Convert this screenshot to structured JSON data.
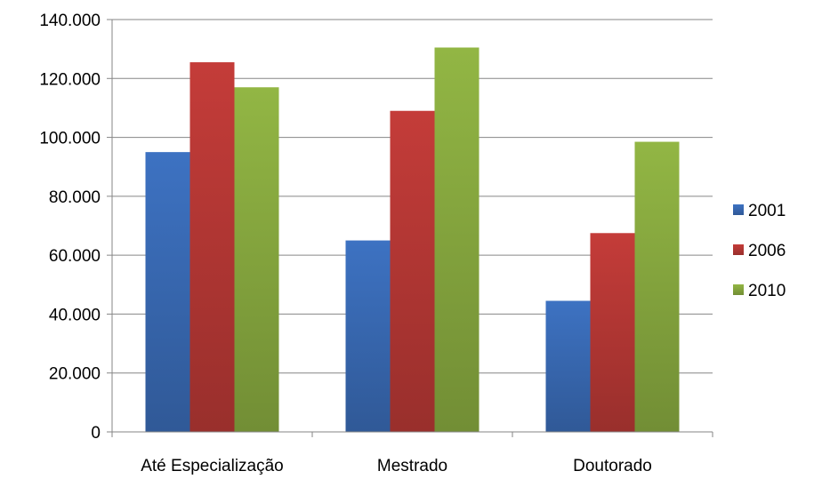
{
  "chart_data": {
    "type": "bar",
    "categories": [
      "Até Especialização",
      "Mestrado",
      "Doutorado"
    ],
    "series": [
      {
        "name": "2001",
        "values": [
          95000,
          65000,
          44500
        ],
        "color": "#3d72c2"
      },
      {
        "name": "2006",
        "values": [
          125500,
          109000,
          67500
        ],
        "color": "#c43c39"
      },
      {
        "name": "2010",
        "values": [
          117000,
          130500,
          98500
        ],
        "color": "#92b644"
      }
    ],
    "ylim": [
      0,
      140000
    ],
    "yticks": [
      0,
      20000,
      40000,
      60000,
      80000,
      100000,
      120000,
      140000
    ],
    "ytick_labels": [
      "0",
      "20.000",
      "40.000",
      "60.000",
      "80.000",
      "100.000",
      "120.000",
      "140.000"
    ],
    "grid": true,
    "legend_position": "right"
  }
}
